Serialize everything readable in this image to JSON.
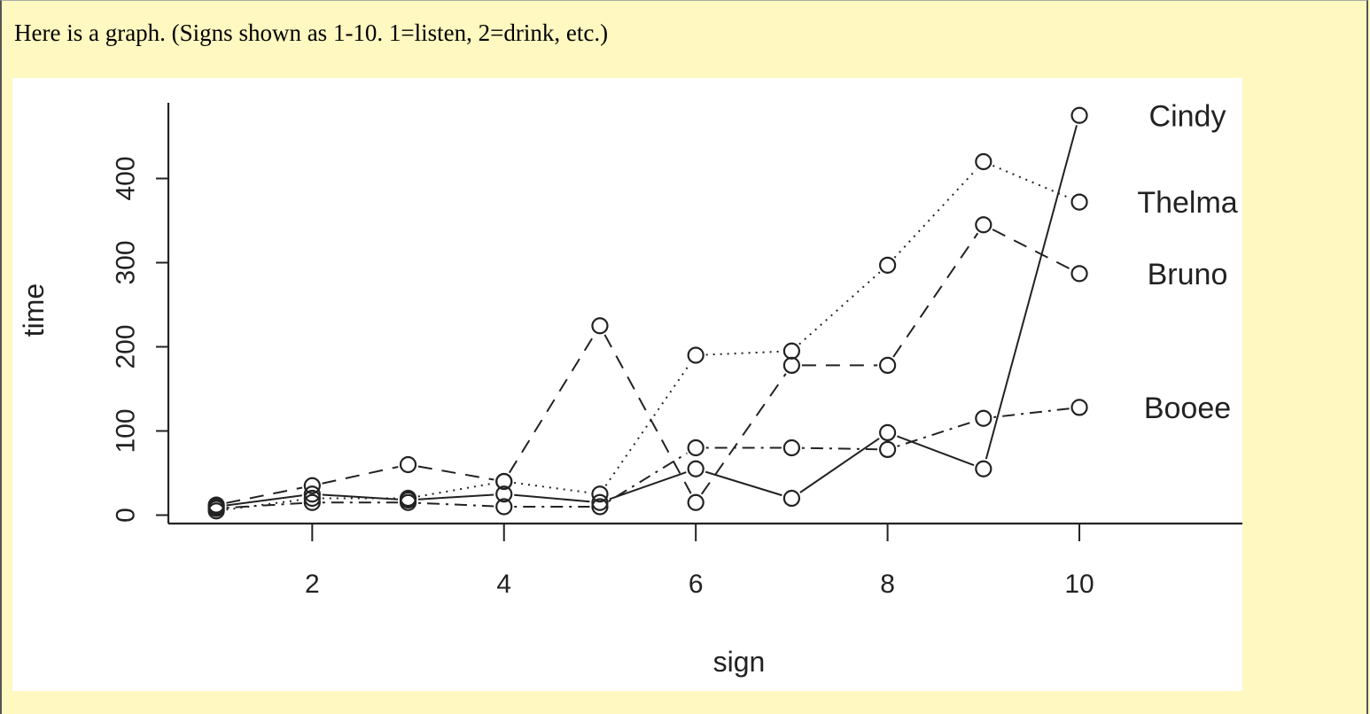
{
  "caption": "Here is a graph. (Signs shown as 1-10. 1=listen, 2=drink, etc.)",
  "chart_data": {
    "type": "line",
    "xlabel": "sign",
    "ylabel": "time",
    "x": [
      1,
      2,
      3,
      4,
      5,
      6,
      7,
      8,
      9,
      10
    ],
    "xticks": [
      2,
      4,
      6,
      8,
      10
    ],
    "yticks": [
      0,
      100,
      200,
      300,
      400
    ],
    "xlim": [
      0.5,
      11.7
    ],
    "ylim": [
      -10,
      490
    ],
    "series": [
      {
        "name": "Cindy",
        "linestyle": "solid",
        "values": [
          10,
          25,
          18,
          25,
          15,
          55,
          20,
          98,
          55,
          475
        ]
      },
      {
        "name": "Thelma",
        "linestyle": "dotted",
        "values": [
          5,
          20,
          20,
          40,
          25,
          190,
          195,
          297,
          420,
          372
        ]
      },
      {
        "name": "Bruno",
        "linestyle": "dashed",
        "values": [
          12,
          35,
          60,
          40,
          225,
          15,
          178,
          178,
          345,
          287
        ]
      },
      {
        "name": "Booee",
        "linestyle": "dashdot",
        "values": [
          8,
          15,
          15,
          10,
          10,
          80,
          80,
          78,
          115,
          128
        ]
      }
    ],
    "label_color": "#222222",
    "marker": "open-circle"
  }
}
